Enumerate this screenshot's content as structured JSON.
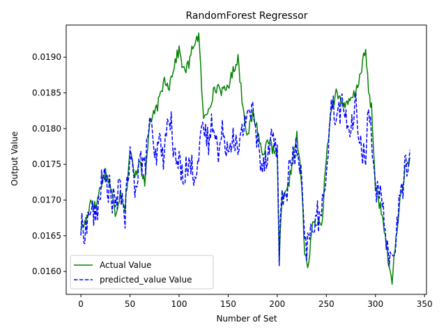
{
  "chart_data": {
    "type": "line",
    "title": "RandomForest Regressor",
    "xlabel": "Number of Set",
    "ylabel": "Output Value",
    "xlim": [
      -15,
      352
    ],
    "ylim": [
      0.01568,
      0.01945
    ],
    "xticks": [
      0,
      50,
      100,
      150,
      200,
      250,
      300,
      350
    ],
    "xtick_labels": [
      "0",
      "50",
      "100",
      "150",
      "200",
      "250",
      "300",
      "350"
    ],
    "yticks": [
      0.016,
      0.0165,
      0.017,
      0.0175,
      0.018,
      0.0185,
      0.019
    ],
    "ytick_labels": [
      "0.0160",
      "0.0165",
      "0.0170",
      "0.0175",
      "0.0180",
      "0.0185",
      "0.0190"
    ],
    "grid": false,
    "legend_position": "lower-left",
    "series": [
      {
        "name": "Actual Value",
        "color": "#008000",
        "style": "solid",
        "keypoints": [
          [
            0,
            0.0166
          ],
          [
            5,
            0.0167
          ],
          [
            10,
            0.017
          ],
          [
            15,
            0.0169
          ],
          [
            20,
            0.0172
          ],
          [
            25,
            0.0174
          ],
          [
            30,
            0.0172
          ],
          [
            35,
            0.0168
          ],
          [
            40,
            0.0171
          ],
          [
            45,
            0.0169
          ],
          [
            50,
            0.0177
          ],
          [
            55,
            0.0173
          ],
          [
            60,
            0.0176
          ],
          [
            65,
            0.0172
          ],
          [
            70,
            0.0181
          ],
          [
            75,
            0.0182
          ],
          [
            80,
            0.0184
          ],
          [
            85,
            0.0187
          ],
          [
            90,
            0.0186
          ],
          [
            95,
            0.0189
          ],
          [
            100,
            0.0191
          ],
          [
            105,
            0.0188
          ],
          [
            110,
            0.0189
          ],
          [
            115,
            0.0192
          ],
          [
            120,
            0.0193
          ],
          [
            125,
            0.0181
          ],
          [
            130,
            0.0183
          ],
          [
            135,
            0.0185
          ],
          [
            140,
            0.0186
          ],
          [
            145,
            0.0185
          ],
          [
            150,
            0.0186
          ],
          [
            155,
            0.0188
          ],
          [
            160,
            0.019
          ],
          [
            165,
            0.0183
          ],
          [
            170,
            0.0179
          ],
          [
            175,
            0.0182
          ],
          [
            180,
            0.018
          ],
          [
            185,
            0.0176
          ],
          [
            190,
            0.0179
          ],
          [
            195,
            0.0177
          ],
          [
            200,
            0.0176
          ],
          [
            202,
            0.0162
          ],
          [
            205,
            0.017
          ],
          [
            210,
            0.0171
          ],
          [
            215,
            0.0175
          ],
          [
            220,
            0.0179
          ],
          [
            225,
            0.0172
          ],
          [
            228,
            0.0162
          ],
          [
            232,
            0.0161
          ],
          [
            235,
            0.0166
          ],
          [
            240,
            0.0167
          ],
          [
            245,
            0.0166
          ],
          [
            250,
            0.0176
          ],
          [
            255,
            0.0183
          ],
          [
            260,
            0.0185
          ],
          [
            265,
            0.0184
          ],
          [
            270,
            0.0183
          ],
          [
            275,
            0.0184
          ],
          [
            280,
            0.0185
          ],
          [
            285,
            0.0188
          ],
          [
            290,
            0.0191
          ],
          [
            293,
            0.0185
          ],
          [
            296,
            0.0183
          ],
          [
            300,
            0.0172
          ],
          [
            305,
            0.0169
          ],
          [
            310,
            0.0165
          ],
          [
            313,
            0.0161
          ],
          [
            317,
            0.0159
          ],
          [
            320,
            0.0163
          ],
          [
            325,
            0.017
          ],
          [
            330,
            0.0174
          ],
          [
            335,
            0.0176
          ]
        ]
      },
      {
        "name": "predicted_value Value",
        "color": "#0000ff",
        "style": "dashed",
        "keypoints": [
          [
            0,
            0.0166
          ],
          [
            5,
            0.0166
          ],
          [
            10,
            0.0169
          ],
          [
            15,
            0.0167
          ],
          [
            20,
            0.0172
          ],
          [
            25,
            0.0173
          ],
          [
            30,
            0.0171
          ],
          [
            35,
            0.0169
          ],
          [
            40,
            0.0172
          ],
          [
            45,
            0.0168
          ],
          [
            50,
            0.0176
          ],
          [
            55,
            0.0172
          ],
          [
            60,
            0.0176
          ],
          [
            65,
            0.0174
          ],
          [
            70,
            0.0182
          ],
          [
            75,
            0.0175
          ],
          [
            80,
            0.0178
          ],
          [
            85,
            0.0176
          ],
          [
            90,
            0.0183
          ],
          [
            95,
            0.0176
          ],
          [
            100,
            0.0175
          ],
          [
            105,
            0.0174
          ],
          [
            110,
            0.0175
          ],
          [
            115,
            0.0174
          ],
          [
            120,
            0.0176
          ],
          [
            125,
            0.018
          ],
          [
            130,
            0.0178
          ],
          [
            135,
            0.0182
          ],
          [
            140,
            0.0176
          ],
          [
            145,
            0.018
          ],
          [
            150,
            0.0177
          ],
          [
            155,
            0.018
          ],
          [
            160,
            0.0176
          ],
          [
            165,
            0.018
          ],
          [
            170,
            0.0183
          ],
          [
            175,
            0.0182
          ],
          [
            180,
            0.0178
          ],
          [
            185,
            0.0175
          ],
          [
            190,
            0.0177
          ],
          [
            195,
            0.0179
          ],
          [
            200,
            0.0177
          ],
          [
            202,
            0.0163
          ],
          [
            205,
            0.017
          ],
          [
            210,
            0.0172
          ],
          [
            215,
            0.0176
          ],
          [
            220,
            0.0177
          ],
          [
            225,
            0.0172
          ],
          [
            228,
            0.0163
          ],
          [
            232,
            0.0164
          ],
          [
            235,
            0.0166
          ],
          [
            240,
            0.0168
          ],
          [
            245,
            0.0167
          ],
          [
            250,
            0.0175
          ],
          [
            255,
            0.0183
          ],
          [
            260,
            0.0182
          ],
          [
            265,
            0.0183
          ],
          [
            270,
            0.0182
          ],
          [
            275,
            0.0179
          ],
          [
            280,
            0.0183
          ],
          [
            285,
            0.0178
          ],
          [
            290,
            0.0175
          ],
          [
            293,
            0.0184
          ],
          [
            296,
            0.018
          ],
          [
            300,
            0.0171
          ],
          [
            305,
            0.017
          ],
          [
            310,
            0.0166
          ],
          [
            313,
            0.0163
          ],
          [
            317,
            0.0161
          ],
          [
            320,
            0.0164
          ],
          [
            325,
            0.017
          ],
          [
            330,
            0.0174
          ],
          [
            335,
            0.0177
          ]
        ]
      }
    ]
  }
}
